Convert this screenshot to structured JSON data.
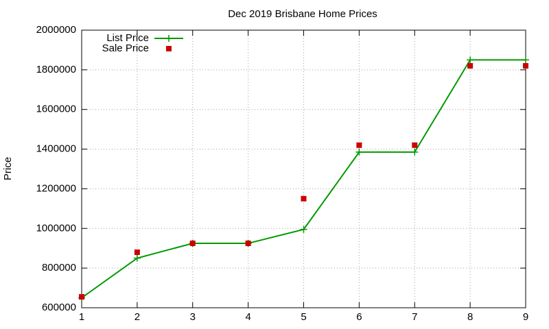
{
  "chart_data": {
    "type": "line",
    "title": "Dec 2019 Brisbane Home Prices",
    "y_label": "Price",
    "x": [
      1,
      2,
      3,
      4,
      5,
      6,
      7,
      8,
      9
    ],
    "series": [
      {
        "name": "List Price",
        "color": "#009900",
        "mode": "lines+markers",
        "marker": "plus",
        "values": [
          650000,
          850000,
          925000,
          925000,
          995000,
          1385000,
          1385000,
          1850000,
          1850000
        ]
      },
      {
        "name": "Sale Price",
        "color": "#cc0000",
        "mode": "markers",
        "marker": "square",
        "values": [
          655000,
          880000,
          925000,
          925000,
          1150000,
          1420000,
          1420000,
          1820000,
          1820000
        ]
      }
    ],
    "xlim": [
      1,
      9
    ],
    "xticks": [
      1,
      2,
      3,
      4,
      5,
      6,
      7,
      8,
      9
    ],
    "ylim": [
      600000,
      2000000
    ],
    "yticks": [
      600000,
      800000,
      1000000,
      1200000,
      1400000,
      1600000,
      1800000,
      2000000
    ],
    "grid": true,
    "legend": "top-left"
  }
}
